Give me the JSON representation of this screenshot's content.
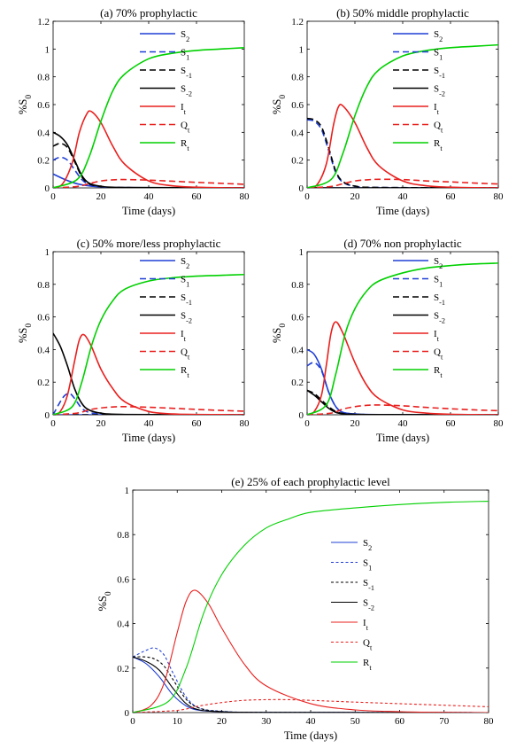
{
  "chart_data": [
    {
      "type": "line",
      "title": "(a) 70% prophylactic",
      "xlabel": "Time (days)",
      "ylabel": "%S0",
      "xlim": [
        0,
        80
      ],
      "ylim": [
        0,
        1.2
      ],
      "xticks": [
        "0",
        "20",
        "40",
        "60",
        "80"
      ],
      "yticks": [
        "0",
        "0.2",
        "0.4",
        "0.6",
        "0.8",
        "1",
        "1.2"
      ],
      "legend": "right",
      "grid": false,
      "series": [
        {
          "name": "S2",
          "color": "#1f3fd6",
          "dash": "solid",
          "x": [
            0,
            5,
            10,
            15,
            20,
            30,
            80
          ],
          "y": [
            0.1,
            0.06,
            0.03,
            0.015,
            0.008,
            0.002,
            0
          ]
        },
        {
          "name": "S1",
          "color": "#1f3fd6",
          "dash": "dashed",
          "x": [
            0,
            3,
            6,
            9,
            12,
            15,
            20,
            30,
            80
          ],
          "y": [
            0.2,
            0.22,
            0.2,
            0.13,
            0.06,
            0.025,
            0.008,
            0.002,
            0
          ]
        },
        {
          "name": "S-1",
          "color": "#000000",
          "dash": "dashed",
          "x": [
            0,
            3,
            6,
            9,
            12,
            15,
            20,
            30,
            80
          ],
          "y": [
            0.3,
            0.32,
            0.29,
            0.19,
            0.08,
            0.03,
            0.01,
            0.002,
            0
          ]
        },
        {
          "name": "S-2",
          "color": "#000000",
          "dash": "solid",
          "x": [
            0,
            3,
            6,
            9,
            12,
            15,
            20,
            30,
            80
          ],
          "y": [
            0.4,
            0.37,
            0.31,
            0.2,
            0.09,
            0.035,
            0.012,
            0.003,
            0
          ]
        },
        {
          "name": "It",
          "color": "#e8201e",
          "dash": "solid",
          "x": [
            0,
            4,
            8,
            11,
            14,
            16,
            20,
            25,
            30,
            40,
            50,
            60,
            70,
            80
          ],
          "y": [
            0,
            0.03,
            0.18,
            0.4,
            0.53,
            0.55,
            0.47,
            0.3,
            0.17,
            0.05,
            0.015,
            0.005,
            0.001,
            0
          ]
        },
        {
          "name": "Qt",
          "color": "#e8201e",
          "dash": "dashed",
          "x": [
            0,
            10,
            15,
            20,
            25,
            30,
            40,
            50,
            60,
            70,
            80
          ],
          "y": [
            0,
            0.01,
            0.03,
            0.05,
            0.058,
            0.06,
            0.056,
            0.048,
            0.04,
            0.033,
            0.026
          ]
        },
        {
          "name": "Rt",
          "color": "#00d000",
          "dash": "solid",
          "x": [
            0,
            10,
            15,
            20,
            25,
            30,
            40,
            50,
            60,
            70,
            80
          ],
          "y": [
            0,
            0.06,
            0.22,
            0.48,
            0.7,
            0.82,
            0.93,
            0.97,
            0.99,
            1.0,
            1.01
          ]
        }
      ]
    },
    {
      "type": "line",
      "title": "(b) 50% middle prophylactic",
      "xlabel": "Time (days)",
      "ylabel": "%S0",
      "xlim": [
        0,
        80
      ],
      "ylim": [
        0,
        1.2
      ],
      "xticks": [
        "0",
        "20",
        "40",
        "60",
        "80"
      ],
      "yticks": [
        "0",
        "0.2",
        "0.4",
        "0.6",
        "0.8",
        "1",
        "1.2"
      ],
      "legend": "right",
      "grid": false,
      "series": [
        {
          "name": "S2",
          "color": "#1f3fd6",
          "dash": "solid",
          "x": [
            0,
            80
          ],
          "y": [
            0,
            0
          ]
        },
        {
          "name": "S1",
          "color": "#1f3fd6",
          "dash": "dashed",
          "x": [
            0,
            3,
            6,
            9,
            12,
            15,
            20,
            30,
            80
          ],
          "y": [
            0.49,
            0.48,
            0.42,
            0.27,
            0.11,
            0.04,
            0.012,
            0.003,
            0
          ]
        },
        {
          "name": "S-1",
          "color": "#000000",
          "dash": "dashed",
          "x": [
            0,
            3,
            6,
            9,
            12,
            15,
            20,
            30,
            80
          ],
          "y": [
            0.5,
            0.49,
            0.44,
            0.29,
            0.12,
            0.045,
            0.013,
            0.003,
            0
          ]
        },
        {
          "name": "S-2",
          "color": "#000000",
          "dash": "solid",
          "x": [
            0,
            80
          ],
          "y": [
            0,
            0
          ]
        },
        {
          "name": "It",
          "color": "#e8201e",
          "dash": "solid",
          "x": [
            0,
            4,
            8,
            11,
            13,
            15,
            20,
            25,
            30,
            40,
            50,
            60,
            70,
            80
          ],
          "y": [
            0,
            0.02,
            0.17,
            0.45,
            0.58,
            0.59,
            0.47,
            0.29,
            0.16,
            0.05,
            0.015,
            0.005,
            0.001,
            0
          ]
        },
        {
          "name": "Qt",
          "color": "#e8201e",
          "dash": "dashed",
          "x": [
            0,
            10,
            15,
            20,
            25,
            30,
            40,
            50,
            60,
            70,
            80
          ],
          "y": [
            0,
            0.01,
            0.03,
            0.05,
            0.058,
            0.062,
            0.06,
            0.05,
            0.043,
            0.035,
            0.028
          ]
        },
        {
          "name": "Rt",
          "color": "#00d000",
          "dash": "solid",
          "x": [
            0,
            10,
            15,
            20,
            25,
            30,
            40,
            50,
            60,
            70,
            80
          ],
          "y": [
            0,
            0.06,
            0.25,
            0.52,
            0.73,
            0.85,
            0.95,
            0.99,
            1.01,
            1.02,
            1.03
          ]
        }
      ]
    },
    {
      "type": "line",
      "title": "(c) 50% more/less prophylactic",
      "xlabel": "Time (days)",
      "ylabel": "%S0",
      "xlim": [
        0,
        80
      ],
      "ylim": [
        0,
        1
      ],
      "xticks": [
        "0",
        "20",
        "40",
        "60",
        "80"
      ],
      "yticks": [
        "0",
        "0.2",
        "0.4",
        "0.6",
        "0.8",
        "1"
      ],
      "legend": "right",
      "grid": false,
      "series": [
        {
          "name": "S2",
          "color": "#1f3fd6",
          "dash": "solid",
          "x": [
            0,
            80
          ],
          "y": [
            0,
            0
          ]
        },
        {
          "name": "S1",
          "color": "#1f3fd6",
          "dash": "dashed",
          "x": [
            0,
            3,
            5,
            7,
            9,
            12,
            15,
            20,
            30,
            80
          ],
          "y": [
            0,
            0.08,
            0.12,
            0.13,
            0.1,
            0.04,
            0.015,
            0.005,
            0.001,
            0
          ]
        },
        {
          "name": "S-1",
          "color": "#000000",
          "dash": "dashed",
          "x": [
            0,
            80
          ],
          "y": [
            0,
            0
          ]
        },
        {
          "name": "S-2",
          "color": "#000000",
          "dash": "solid",
          "x": [
            0,
            3,
            6,
            9,
            12,
            15,
            20,
            30,
            80
          ],
          "y": [
            0.5,
            0.42,
            0.3,
            0.16,
            0.07,
            0.03,
            0.01,
            0.002,
            0
          ]
        },
        {
          "name": "It",
          "color": "#e8201e",
          "dash": "solid",
          "x": [
            0,
            3,
            6,
            9,
            11,
            13,
            16,
            20,
            25,
            30,
            40,
            50,
            60,
            70,
            80
          ],
          "y": [
            0,
            0.02,
            0.12,
            0.33,
            0.46,
            0.49,
            0.42,
            0.28,
            0.16,
            0.08,
            0.02,
            0.005,
            0.002,
            0.001,
            0
          ]
        },
        {
          "name": "Qt",
          "color": "#e8201e",
          "dash": "dashed",
          "x": [
            0,
            10,
            15,
            20,
            25,
            30,
            40,
            50,
            60,
            70,
            80
          ],
          "y": [
            0,
            0.01,
            0.03,
            0.042,
            0.048,
            0.05,
            0.046,
            0.04,
            0.033,
            0.027,
            0.022
          ]
        },
        {
          "name": "Rt",
          "color": "#00d000",
          "dash": "solid",
          "x": [
            0,
            8,
            12,
            16,
            20,
            25,
            30,
            40,
            50,
            60,
            70,
            80
          ],
          "y": [
            0,
            0.05,
            0.2,
            0.42,
            0.58,
            0.7,
            0.77,
            0.82,
            0.84,
            0.85,
            0.855,
            0.86
          ]
        }
      ]
    },
    {
      "type": "line",
      "title": "(d) 70% non prophylactic",
      "xlabel": "Time (days)",
      "ylabel": "%S0",
      "xlim": [
        0,
        80
      ],
      "ylim": [
        0,
        1
      ],
      "xticks": [
        "0",
        "20",
        "40",
        "60",
        "80"
      ],
      "yticks": [
        "0",
        "0.2",
        "0.4",
        "0.6",
        "0.8",
        "1"
      ],
      "legend": "right",
      "grid": false,
      "series": [
        {
          "name": "S2",
          "color": "#1f3fd6",
          "dash": "solid",
          "x": [
            0,
            3,
            6,
            9,
            12,
            15,
            20,
            30,
            80
          ],
          "y": [
            0.4,
            0.37,
            0.28,
            0.14,
            0.05,
            0.015,
            0.005,
            0.001,
            0
          ]
        },
        {
          "name": "S1",
          "color": "#1f3fd6",
          "dash": "dashed",
          "x": [
            0,
            3,
            6,
            9,
            12,
            15,
            20,
            30,
            80
          ],
          "y": [
            0.3,
            0.32,
            0.27,
            0.14,
            0.05,
            0.015,
            0.005,
            0.001,
            0
          ]
        },
        {
          "name": "S-1",
          "color": "#000000",
          "dash": "dashed",
          "x": [
            0,
            3,
            6,
            9,
            12,
            15,
            20,
            30,
            80
          ],
          "y": [
            0.15,
            0.13,
            0.09,
            0.05,
            0.02,
            0.008,
            0.003,
            0.001,
            0
          ]
        },
        {
          "name": "S-2",
          "color": "#000000",
          "dash": "solid",
          "x": [
            0,
            3,
            6,
            9,
            12,
            15,
            20,
            30,
            80
          ],
          "y": [
            0.15,
            0.12,
            0.08,
            0.04,
            0.015,
            0.006,
            0.002,
            0.001,
            0
          ]
        },
        {
          "name": "It",
          "color": "#e8201e",
          "dash": "solid",
          "x": [
            0,
            3,
            6,
            8,
            10,
            12,
            15,
            20,
            25,
            30,
            40,
            50,
            60,
            70,
            80
          ],
          "y": [
            0,
            0.02,
            0.12,
            0.3,
            0.5,
            0.57,
            0.5,
            0.32,
            0.18,
            0.1,
            0.03,
            0.01,
            0.003,
            0.001,
            0
          ]
        },
        {
          "name": "Qt",
          "color": "#e8201e",
          "dash": "dashed",
          "x": [
            0,
            10,
            15,
            20,
            25,
            30,
            40,
            50,
            60,
            70,
            80
          ],
          "y": [
            0,
            0.01,
            0.035,
            0.05,
            0.058,
            0.06,
            0.055,
            0.045,
            0.037,
            0.03,
            0.025
          ]
        },
        {
          "name": "Rt",
          "color": "#00d000",
          "dash": "solid",
          "x": [
            0,
            8,
            12,
            16,
            20,
            25,
            30,
            40,
            50,
            60,
            70,
            80
          ],
          "y": [
            0,
            0.06,
            0.25,
            0.5,
            0.65,
            0.76,
            0.82,
            0.87,
            0.9,
            0.915,
            0.925,
            0.93
          ]
        }
      ]
    },
    {
      "type": "line",
      "title": "(e) 25% of each prophylactic level",
      "xlabel": "Time (days)",
      "ylabel": "%S0",
      "xlim": [
        0,
        80
      ],
      "ylim": [
        0,
        1
      ],
      "xticks": [
        "0",
        "10",
        "20",
        "30",
        "40",
        "50",
        "60",
        "70",
        "80"
      ],
      "yticks": [
        "0",
        "0.2",
        "0.4",
        "0.6",
        "0.8",
        "1"
      ],
      "legend": "right",
      "grid": false,
      "series": [
        {
          "name": "S2",
          "color": "#1f3fd6",
          "dash": "solid",
          "x": [
            0,
            3,
            6,
            9,
            12,
            15,
            20,
            30,
            80
          ],
          "y": [
            0.25,
            0.22,
            0.16,
            0.08,
            0.03,
            0.01,
            0.004,
            0.001,
            0
          ]
        },
        {
          "name": "S1",
          "color": "#1f3fd6",
          "dash": "dotted",
          "x": [
            0,
            3,
            5,
            7,
            9,
            12,
            15,
            20,
            30,
            80
          ],
          "y": [
            0.25,
            0.28,
            0.29,
            0.26,
            0.18,
            0.07,
            0.02,
            0.006,
            0.001,
            0
          ]
        },
        {
          "name": "S-1",
          "color": "#000000",
          "dash": "dotted",
          "x": [
            0,
            3,
            5,
            7,
            9,
            12,
            15,
            20,
            30,
            80
          ],
          "y": [
            0.25,
            0.25,
            0.24,
            0.21,
            0.15,
            0.06,
            0.02,
            0.005,
            0.001,
            0
          ]
        },
        {
          "name": "S-2",
          "color": "#000000",
          "dash": "solid",
          "x": [
            0,
            3,
            6,
            9,
            12,
            15,
            20,
            30,
            80
          ],
          "y": [
            0.25,
            0.23,
            0.19,
            0.11,
            0.04,
            0.012,
            0.004,
            0.001,
            0
          ]
        },
        {
          "name": "It",
          "color": "#e8201e",
          "dash": "solid",
          "x": [
            0,
            4,
            7,
            10,
            12,
            14,
            17,
            20,
            25,
            30,
            40,
            50,
            60,
            70,
            80
          ],
          "y": [
            0,
            0.03,
            0.13,
            0.36,
            0.5,
            0.55,
            0.49,
            0.38,
            0.22,
            0.12,
            0.04,
            0.012,
            0.004,
            0.001,
            0
          ]
        },
        {
          "name": "Qt",
          "color": "#e8201e",
          "dash": "dotted",
          "x": [
            0,
            10,
            15,
            20,
            25,
            30,
            35,
            40,
            50,
            60,
            70,
            80
          ],
          "y": [
            0,
            0.01,
            0.03,
            0.045,
            0.055,
            0.058,
            0.058,
            0.055,
            0.047,
            0.04,
            0.033,
            0.026
          ]
        },
        {
          "name": "Rt",
          "color": "#00d000",
          "dash": "solid",
          "x": [
            0,
            8,
            12,
            16,
            20,
            25,
            30,
            35,
            40,
            50,
            60,
            70,
            80
          ],
          "y": [
            0,
            0.05,
            0.2,
            0.45,
            0.62,
            0.75,
            0.83,
            0.87,
            0.9,
            0.92,
            0.935,
            0.945,
            0.95
          ]
        }
      ]
    }
  ]
}
